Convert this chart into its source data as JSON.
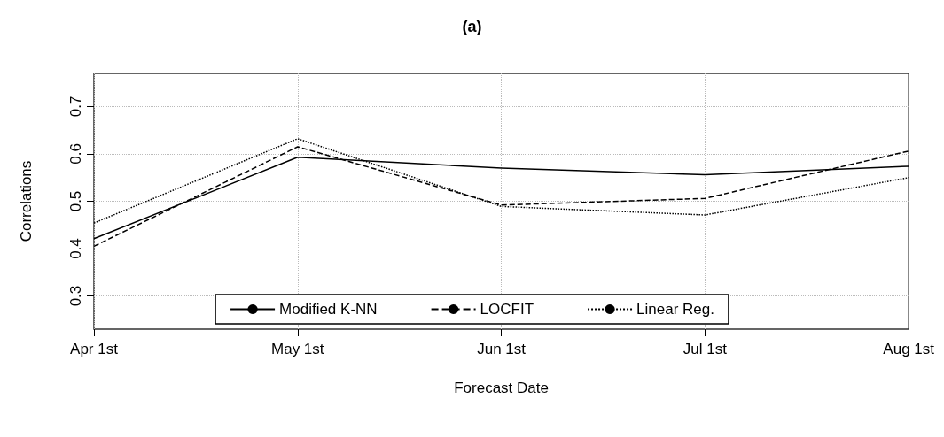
{
  "chart_data": {
    "type": "line",
    "title": "(a)",
    "xlabel": "Forecast Date",
    "ylabel": "Correlations",
    "categories": [
      "Apr 1st",
      "May 1st",
      "Jun 1st",
      "Jul 1st",
      "Aug 1st"
    ],
    "series": [
      {
        "name": "Modified K-NN",
        "color": "#000000",
        "line_style": "solid",
        "values": [
          0.421,
          0.593,
          0.57,
          0.556,
          0.574
        ]
      },
      {
        "name": "LOCFIT",
        "color": "#000000",
        "line_style": "dashed",
        "values": [
          0.405,
          0.615,
          0.492,
          0.506,
          0.606
        ]
      },
      {
        "name": "Linear Reg.",
        "color": "#000000",
        "line_style": "dotted",
        "values": [
          0.454,
          0.632,
          0.489,
          0.471,
          0.55
        ]
      }
    ],
    "ylim": [
      0.23,
      0.77
    ],
    "yticks": [
      0.3,
      0.4,
      0.5,
      0.6,
      0.7
    ],
    "grid": true,
    "legend": "bottom",
    "marker": "none"
  }
}
